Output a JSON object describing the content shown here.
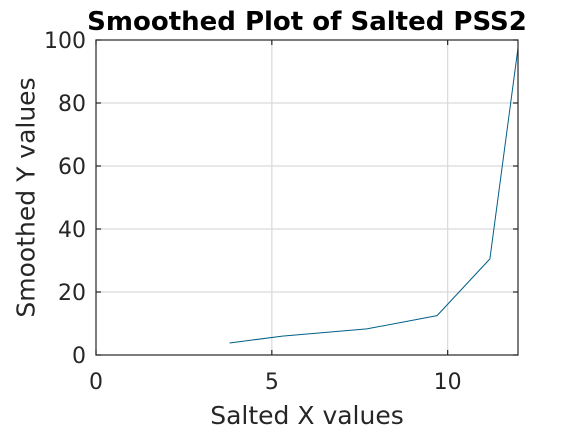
{
  "chart_data": {
    "type": "line",
    "title": "Smoothed Plot of Salted PSS2",
    "xlabel": "Salted X values",
    "ylabel": "Smoothed Y values",
    "xlim": [
      0,
      12
    ],
    "ylim": [
      0,
      100
    ],
    "xticks": [
      0,
      5,
      10
    ],
    "yticks": [
      0,
      20,
      40,
      60,
      80,
      100
    ],
    "grid": true,
    "series": [
      {
        "color": "#005f87",
        "x": [
          3.8,
          5.3,
          7.7,
          9.7,
          11.2,
          12.0
        ],
        "y": [
          3.8,
          6.0,
          8.3,
          12.5,
          30.5,
          97.5
        ]
      }
    ]
  }
}
